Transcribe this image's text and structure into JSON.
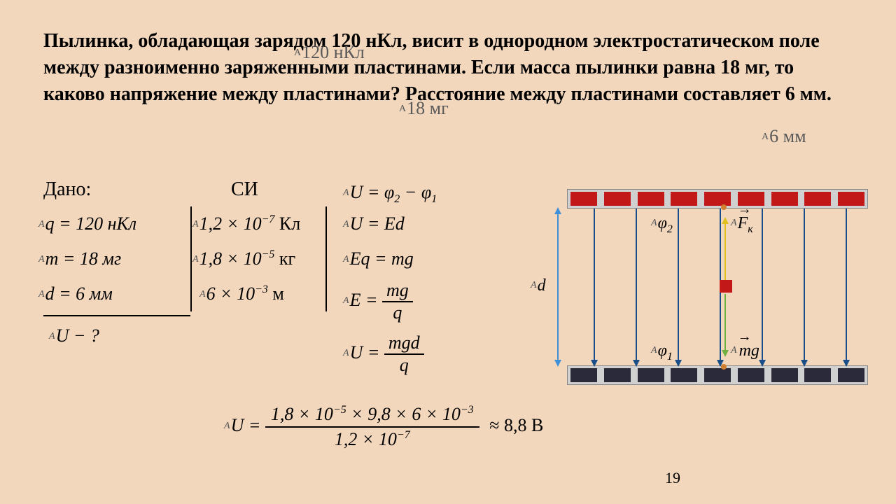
{
  "problem": "Пылинка, обладающая зарядом 120 нКл, висит в однородном электростатическом поле между разноименно заряженными пластинами. Если масса пылинки равна 18 мг, то каково напряжение между пластинами? Расстояние между пластинами составляет 6 мм.",
  "ghost": {
    "q": "120 нКл",
    "m": "18 мг",
    "d": "6 мм"
  },
  "headers": {
    "dano": "Дано:",
    "si": "СИ"
  },
  "given": {
    "q": {
      "lhs": "q = 120 нКл",
      "si_num": "1,2 × 10",
      "si_exp": "−7",
      "si_unit": " Кл"
    },
    "m": {
      "lhs": "m = 18 мг",
      "si_num": "1,8 × 10",
      "si_exp": "−5",
      "si_unit": " кг"
    },
    "d": {
      "lhs": "d = 6 мм",
      "si_num": "6 × 10",
      "si_exp": "−3",
      "si_unit": " м"
    },
    "U": "U − ?"
  },
  "solution": {
    "l1": {
      "pre": "U = φ",
      "s1": "2",
      "mid": " − φ",
      "s2": "1"
    },
    "l2": "U = Ed",
    "l3": "Eq = mg",
    "l4": {
      "lhs": "E =",
      "num": "mg",
      "den": "q"
    },
    "l5": {
      "lhs": "U =",
      "num": "mgd",
      "den": "q"
    }
  },
  "final": {
    "lhs": "U =",
    "num_a": "1,8 × 10",
    "num_ae": "−5",
    "num_b": " × 9,8 × 6 × 10",
    "num_be": "−3",
    "den_a": "1,2 × 10",
    "den_ae": "−7",
    "ans": "≈ 8,8 В"
  },
  "diagram": {
    "d": "d",
    "phi2": "φ",
    "phi2s": "2",
    "phi1": "φ",
    "phi1s": "1",
    "Fk": "F",
    "Fks": "к",
    "mg": "mg",
    "line_x": [
      58,
      118,
      178,
      238,
      298,
      358,
      418
    ],
    "top_cells": 9,
    "bot_cells": 9
  },
  "page": "19",
  "colors": {
    "bg": "#f2d7bd",
    "red": "#c31818",
    "dark": "#2a2a3a",
    "field": "#1a4e8a",
    "dim": "#4090d8",
    "up": "#e0c020",
    "dn": "#70b040"
  }
}
